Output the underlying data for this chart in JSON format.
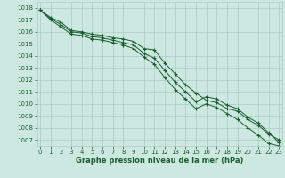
{
  "x": [
    0,
    1,
    2,
    3,
    4,
    5,
    6,
    7,
    8,
    9,
    10,
    11,
    12,
    13,
    14,
    15,
    16,
    17,
    18,
    19,
    20,
    21,
    22,
    23
  ],
  "line1": [
    1017.8,
    1017.2,
    1016.8,
    1016.1,
    1016.0,
    1015.8,
    1015.7,
    1015.5,
    1015.4,
    1015.2,
    1014.6,
    1014.5,
    1013.4,
    1012.5,
    1011.6,
    1010.9,
    1010.3,
    1010.1,
    1009.6,
    1009.4,
    1008.7,
    1008.2,
    1007.5,
    1007.0
  ],
  "line2": [
    1017.8,
    1017.1,
    1016.6,
    1016.0,
    1015.9,
    1015.6,
    1015.5,
    1015.3,
    1015.1,
    1014.9,
    1014.2,
    1013.8,
    1012.8,
    1011.8,
    1011.0,
    1010.2,
    1010.6,
    1010.4,
    1009.9,
    1009.6,
    1008.9,
    1008.4,
    1007.6,
    1006.8
  ],
  "line3": [
    1017.8,
    1017.0,
    1016.4,
    1015.8,
    1015.7,
    1015.4,
    1015.3,
    1015.1,
    1014.9,
    1014.6,
    1013.9,
    1013.3,
    1012.2,
    1011.2,
    1010.4,
    1009.6,
    1010.0,
    1009.7,
    1009.2,
    1008.7,
    1008.0,
    1007.4,
    1006.7,
    1006.5
  ],
  "bg_color": "#cce8e0",
  "grid_color": "#aaccc4",
  "line_color": "#1a5e30",
  "tick_color": "#1a5e30",
  "xlabel": "Graphe pression niveau de la mer (hPa)",
  "xlabel_color": "#1a5e30",
  "ylim": [
    1006.5,
    1018.5
  ],
  "yticks": [
    1007,
    1008,
    1009,
    1010,
    1011,
    1012,
    1013,
    1014,
    1015,
    1016,
    1017,
    1018
  ],
  "xlim": [
    -0.3,
    23.3
  ],
  "xticks": [
    0,
    1,
    2,
    3,
    4,
    5,
    6,
    7,
    8,
    9,
    10,
    11,
    12,
    13,
    14,
    15,
    16,
    17,
    18,
    19,
    20,
    21,
    22,
    23
  ],
  "tick_fontsize": 5.0,
  "xlabel_fontsize": 6.0
}
